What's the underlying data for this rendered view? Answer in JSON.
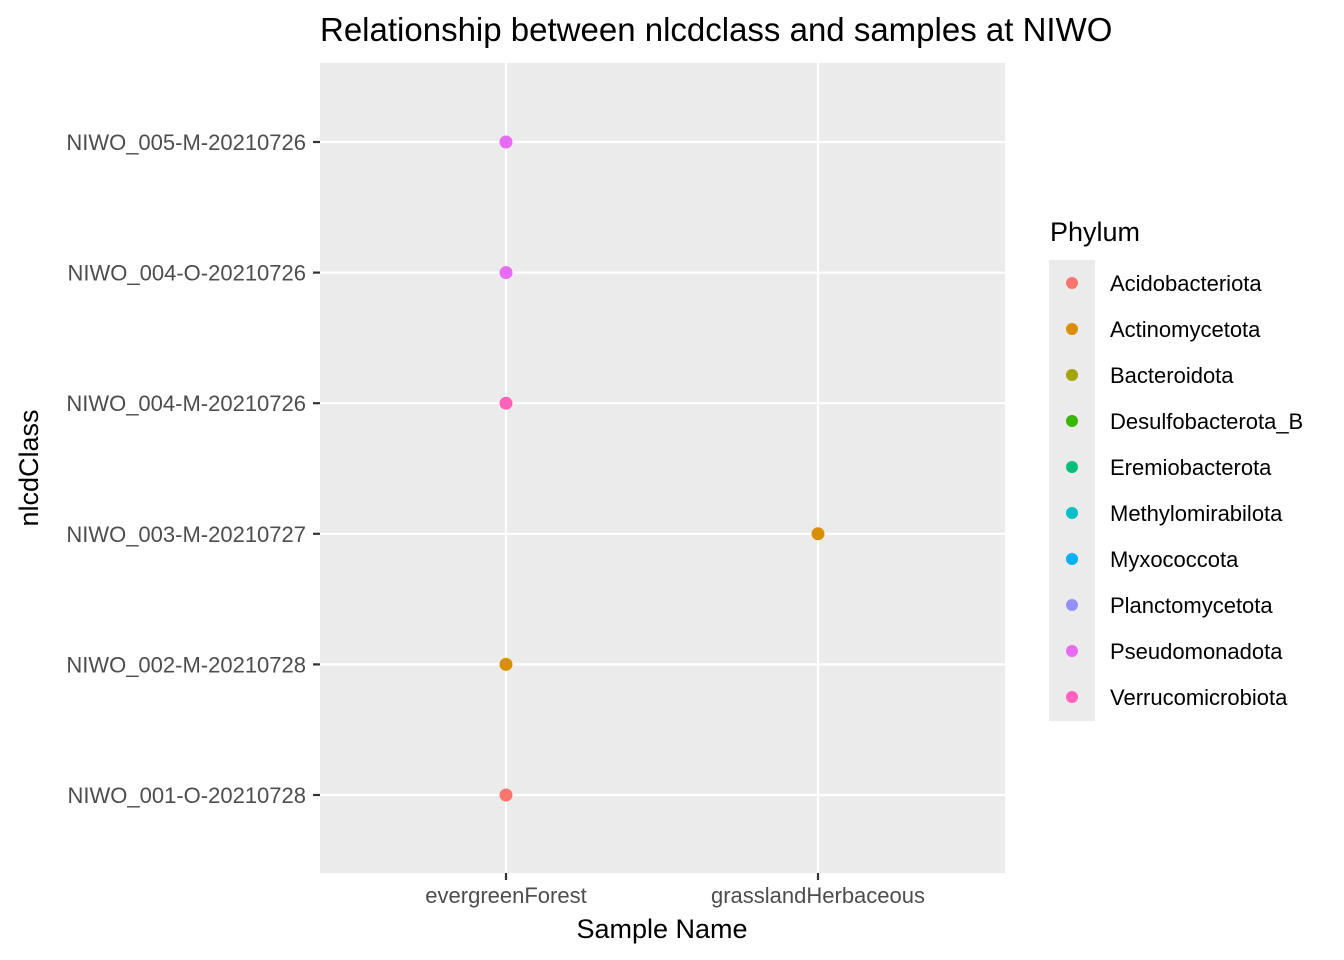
{
  "chart_data": {
    "type": "scatter",
    "title": "Relationship between nlcdclass and samples at NIWO",
    "xlabel": "Sample Name",
    "ylabel": "nlcdClass",
    "x_categories": [
      "evergreenForest",
      "grasslandHerbaceous"
    ],
    "y_categories": [
      "NIWO_001-O-20210728",
      "NIWO_002-M-20210728",
      "NIWO_003-M-20210727",
      "NIWO_004-M-20210726",
      "NIWO_004-O-20210726",
      "NIWO_005-M-20210726"
    ],
    "legend": {
      "title": "Phylum",
      "placement": "right",
      "entries": [
        {
          "name": "Acidobacteriota",
          "color": "#F8766D"
        },
        {
          "name": "Actinomycetota",
          "color": "#D89000"
        },
        {
          "name": "Bacteroidota",
          "color": "#A3A500"
        },
        {
          "name": "Desulfobacterota_B",
          "color": "#39B600"
        },
        {
          "name": "Eremiobacterota",
          "color": "#00BF7D"
        },
        {
          "name": "Methylomirabilota",
          "color": "#00BFC4"
        },
        {
          "name": "Myxococcota",
          "color": "#00B0F6"
        },
        {
          "name": "Planctomycetota",
          "color": "#9590FF"
        },
        {
          "name": "Pseudomonadota",
          "color": "#E76BF3"
        },
        {
          "name": "Verrucomicrobiota",
          "color": "#FF62BC"
        }
      ]
    },
    "points": [
      {
        "x": "evergreenForest",
        "y": "NIWO_001-O-20210728",
        "phylum": "Acidobacteriota"
      },
      {
        "x": "evergreenForest",
        "y": "NIWO_002-M-20210728",
        "phylum": "Actinomycetota"
      },
      {
        "x": "grasslandHerbaceous",
        "y": "NIWO_003-M-20210727",
        "phylum": "Actinomycetota"
      },
      {
        "x": "evergreenForest",
        "y": "NIWO_004-M-20210726",
        "phylum": "Verrucomicrobiota"
      },
      {
        "x": "evergreenForest",
        "y": "NIWO_004-O-20210726",
        "phylum": "Pseudomonadota"
      },
      {
        "x": "evergreenForest",
        "y": "NIWO_005-M-20210726",
        "phylum": "Pseudomonadota"
      }
    ],
    "grid": true,
    "panel_background": "#EBEBEB",
    "grid_color": "#FFFFFF"
  }
}
